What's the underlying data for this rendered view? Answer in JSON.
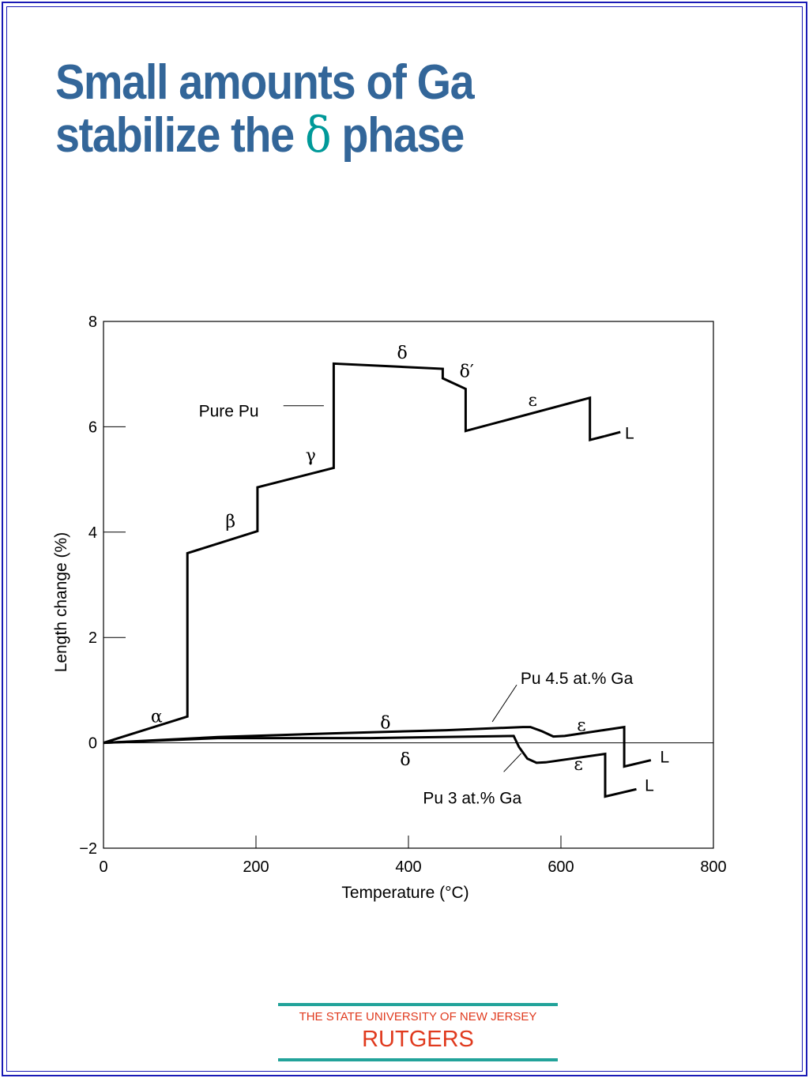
{
  "title": {
    "line1": "Small amounts of Ga",
    "line2_before": "stabilize the ",
    "line2_symbol": "δ",
    "line2_after": " phase"
  },
  "colors": {
    "title": "#336699",
    "title_symbol": "#009999",
    "frame": "#1a1ab5",
    "footer_bar": "#22a39a",
    "footer_text": "#e03a1e"
  },
  "footer": {
    "university": "THE STATE UNIVERSITY OF NEW JERSEY",
    "brand": "RUTGERS"
  },
  "chart_data": {
    "type": "line",
    "xlabel": "Temperature (°C)",
    "ylabel": "Length change (%)",
    "xlim": [
      0,
      800
    ],
    "ylim": [
      -2,
      8
    ],
    "x_ticks": [
      0,
      200,
      400,
      600,
      800
    ],
    "x_tick_labels": [
      "0",
      "200",
      "400",
      "600",
      "800"
    ],
    "y_ticks": [
      -2,
      0,
      2,
      4,
      6,
      8
    ],
    "y_tick_labels": [
      "−2",
      "0",
      "2",
      "4",
      "6",
      "8"
    ],
    "zero_line": true,
    "grid": false,
    "series": [
      {
        "name": "Pure Pu",
        "segments": [
          [
            [
              0,
              0
            ],
            [
              110,
              0.5
            ],
            [
              110,
              3.6
            ],
            [
              202,
              4.02
            ],
            [
              202,
              4.85
            ],
            [
              302,
              5.22
            ],
            [
              302,
              7.2
            ],
            [
              445,
              7.1
            ],
            [
              445,
              6.92
            ],
            [
              475,
              6.72
            ],
            [
              475,
              5.92
            ],
            [
              638,
              6.55
            ],
            [
              638,
              5.75
            ],
            [
              657,
              5.82
            ]
          ],
          [
            [
              678,
              5.9
            ],
            [
              678,
              5.9
            ]
          ]
        ]
      },
      {
        "name": "Pu 4.5 at.% Ga",
        "segments": [
          [
            [
              0,
              0
            ],
            [
              150,
              0.11
            ],
            [
              300,
              0.18
            ],
            [
              450,
              0.24
            ],
            [
              550,
              0.3
            ],
            [
              560,
              0.3
            ],
            [
              575,
              0.22
            ],
            [
              590,
              0.12
            ],
            [
              605,
              0.13
            ],
            [
              683,
              0.3
            ],
            [
              683,
              -0.45
            ],
            [
              718,
              -0.33
            ]
          ]
        ]
      },
      {
        "name": "Pu 3 at.% Ga",
        "segments": [
          [
            [
              0,
              0
            ],
            [
              150,
              0.09
            ],
            [
              350,
              0.09
            ],
            [
              538,
              0.13
            ],
            [
              545,
              -0.08
            ],
            [
              556,
              -0.3
            ],
            [
              568,
              -0.38
            ],
            [
              580,
              -0.37
            ],
            [
              658,
              -0.21
            ],
            [
              658,
              -1.02
            ],
            [
              699,
              -0.88
            ]
          ]
        ]
      }
    ],
    "annotations": [
      {
        "text": "α",
        "x": 62,
        "y": 0.5,
        "greek": true
      },
      {
        "text": "β",
        "x": 160,
        "y": 4.2,
        "greek": true
      },
      {
        "text": "γ",
        "x": 265,
        "y": 5.45,
        "greek": true
      },
      {
        "text": "δ",
        "x": 385,
        "y": 7.4,
        "greek": true
      },
      {
        "text": "δ′",
        "x": 467,
        "y": 7.05,
        "greek": true
      },
      {
        "text": "ε",
        "x": 557,
        "y": 6.5,
        "greek": true
      },
      {
        "text": "L",
        "x": 684,
        "y": 5.88,
        "greek": false
      },
      {
        "text": "Pure Pu",
        "x": 125,
        "y": 6.3,
        "greek": false
      },
      {
        "text": "Pu 4.5 at.% Ga",
        "x": 547,
        "y": 1.22,
        "greek": false
      },
      {
        "text": "δ",
        "x": 363,
        "y": 0.38,
        "greek": true
      },
      {
        "text": "ε",
        "x": 621,
        "y": 0.33,
        "greek": true
      },
      {
        "text": "L",
        "x": 730,
        "y": -0.27,
        "greek": false
      },
      {
        "text": "δ",
        "x": 389,
        "y": -0.32,
        "greek": true
      },
      {
        "text": "ε",
        "x": 617,
        "y": -0.41,
        "greek": true
      },
      {
        "text": "L",
        "x": 710,
        "y": -0.81,
        "greek": false
      },
      {
        "text": "Pu 3 at.% Ga",
        "x": 419,
        "y": -1.05,
        "greek": false
      }
    ],
    "leader_lines": [
      {
        "from": [
          236,
          6.4
        ],
        "to": [
          289,
          6.4
        ]
      },
      {
        "from": [
          510,
          0.4
        ],
        "to": [
          542,
          1.1
        ]
      },
      {
        "from": [
          525,
          -0.55
        ],
        "to": [
          548,
          -0.2
        ]
      }
    ]
  }
}
